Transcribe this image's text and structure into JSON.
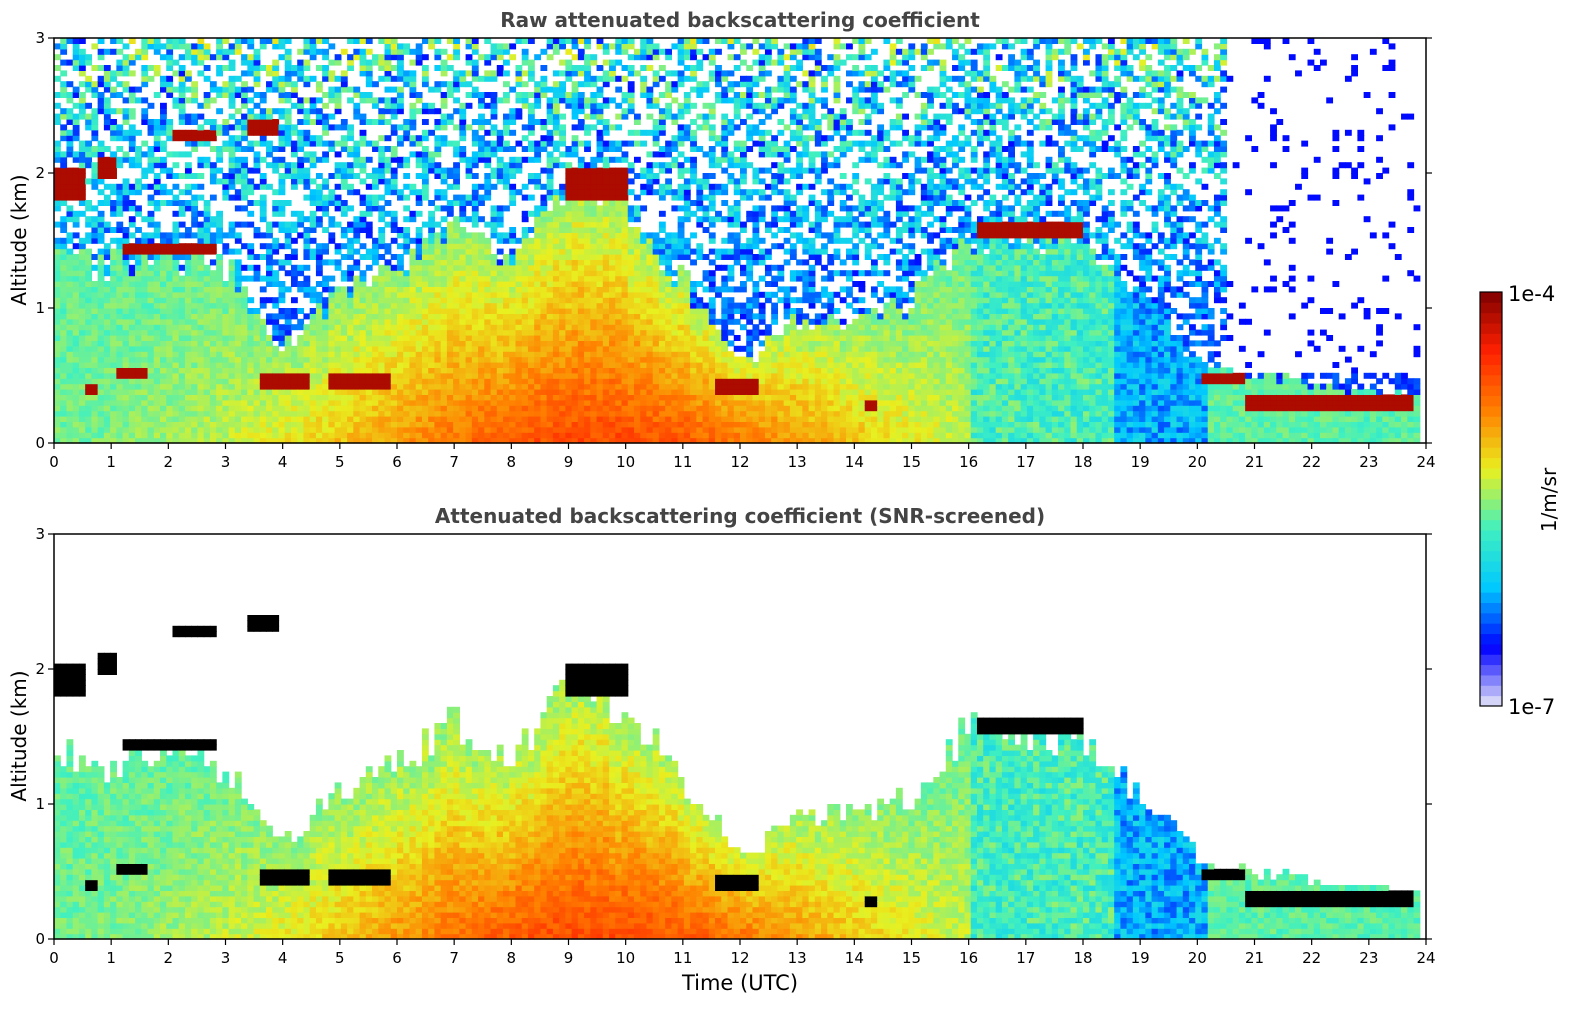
{
  "chart_data": [
    {
      "type": "heatmap",
      "title": "Raw attenuated backscattering coefficient",
      "xlabel": "",
      "ylabel": "Altitude (km)",
      "xlim": [
        0,
        24
      ],
      "ylim": [
        0,
        3
      ],
      "xticks": [
        "0",
        "1",
        "2",
        "3",
        "4",
        "5",
        "6",
        "7",
        "8",
        "9",
        "10",
        "11",
        "12",
        "13",
        "14",
        "15",
        "16",
        "17",
        "18",
        "19",
        "20",
        "21",
        "22",
        "23",
        "24"
      ],
      "yticks": [
        "0",
        "1",
        "2",
        "3"
      ],
      "screened": false,
      "features": {
        "cloud_layers": [
          {
            "t0": 0.05,
            "t1": 0.6,
            "alt": 1.92,
            "thick": 0.22
          },
          {
            "t0": 0.8,
            "t1": 1.05,
            "alt": 2.05,
            "thick": 0.18
          },
          {
            "t0": 1.2,
            "t1": 2.8,
            "alt": 1.45,
            "thick": 0.1
          },
          {
            "t0": 2.1,
            "t1": 2.8,
            "alt": 2.28,
            "thick": 0.12
          },
          {
            "t0": 3.35,
            "t1": 3.9,
            "alt": 2.35,
            "thick": 0.1
          },
          {
            "t0": 9.0,
            "t1": 10.0,
            "alt": 1.93,
            "thick": 0.22
          },
          {
            "t0": 16.1,
            "t1": 18.0,
            "alt": 1.58,
            "thick": 0.12
          },
          {
            "t0": 0.6,
            "t1": 0.75,
            "alt": 0.4,
            "thick": 0.1
          },
          {
            "t0": 1.1,
            "t1": 1.6,
            "alt": 0.53,
            "thick": 0.07
          },
          {
            "t0": 3.6,
            "t1": 4.5,
            "alt": 0.48,
            "thick": 0.12
          },
          {
            "t0": 4.8,
            "t1": 5.9,
            "alt": 0.46,
            "thick": 0.1
          },
          {
            "t0": 11.6,
            "t1": 12.3,
            "alt": 0.43,
            "thick": 0.12
          },
          {
            "t0": 14.2,
            "t1": 14.4,
            "alt": 0.28,
            "thick": 0.1
          },
          {
            "t0": 20.1,
            "t1": 20.8,
            "alt": 0.48,
            "thick": 0.1
          },
          {
            "t0": 20.8,
            "t1": 23.8,
            "alt": 0.3,
            "thick": 0.1
          }
        ],
        "boundary_layer_top": [
          {
            "t": 0,
            "alt": 1.4
          },
          {
            "t": 1,
            "alt": 1.3
          },
          {
            "t": 2,
            "alt": 1.4
          },
          {
            "t": 3,
            "alt": 1.3
          },
          {
            "t": 4,
            "alt": 0.7
          },
          {
            "t": 5,
            "alt": 1.1
          },
          {
            "t": 6,
            "alt": 1.3
          },
          {
            "t": 7,
            "alt": 1.6
          },
          {
            "t": 8,
            "alt": 1.3
          },
          {
            "t": 9,
            "alt": 1.9
          },
          {
            "t": 10,
            "alt": 1.7
          },
          {
            "t": 11,
            "alt": 1.2
          },
          {
            "t": 12,
            "alt": 0.6
          },
          {
            "t": 13,
            "alt": 0.9
          },
          {
            "t": 14,
            "alt": 0.95
          },
          {
            "t": 15,
            "alt": 1.05
          },
          {
            "t": 16,
            "alt": 1.55
          },
          {
            "t": 17,
            "alt": 1.55
          },
          {
            "t": 18,
            "alt": 1.45
          },
          {
            "t": 19,
            "alt": 1.1
          },
          {
            "t": 20,
            "alt": 0.6
          },
          {
            "t": 21,
            "alt": 0.5
          },
          {
            "t": 22,
            "alt": 0.45
          },
          {
            "t": 23,
            "alt": 0.38
          },
          {
            "t": 23.8,
            "alt": 0.35
          }
        ]
      }
    },
    {
      "type": "heatmap",
      "title": "Attenuated backscattering coefficient (SNR-screened)",
      "xlabel": "Time (UTC)",
      "ylabel": "Altitude (km)",
      "xlim": [
        0,
        24
      ],
      "ylim": [
        0,
        3
      ],
      "xticks": [
        "0",
        "1",
        "2",
        "3",
        "4",
        "5",
        "6",
        "7",
        "8",
        "9",
        "10",
        "11",
        "12",
        "13",
        "14",
        "15",
        "16",
        "17",
        "18",
        "19",
        "20",
        "21",
        "22",
        "23",
        "24"
      ],
      "yticks": [
        "0",
        "1",
        "2",
        "3"
      ],
      "screened": true
    }
  ],
  "colorbar": {
    "label": "1/m/sr",
    "max_label": "1e-4",
    "min_label": "1e-7",
    "colormap": [
      "#e8e8f8",
      "#0000ff",
      "#00c8ff",
      "#40f0c0",
      "#e8f020",
      "#ff8000",
      "#ff2000",
      "#800000"
    ]
  }
}
